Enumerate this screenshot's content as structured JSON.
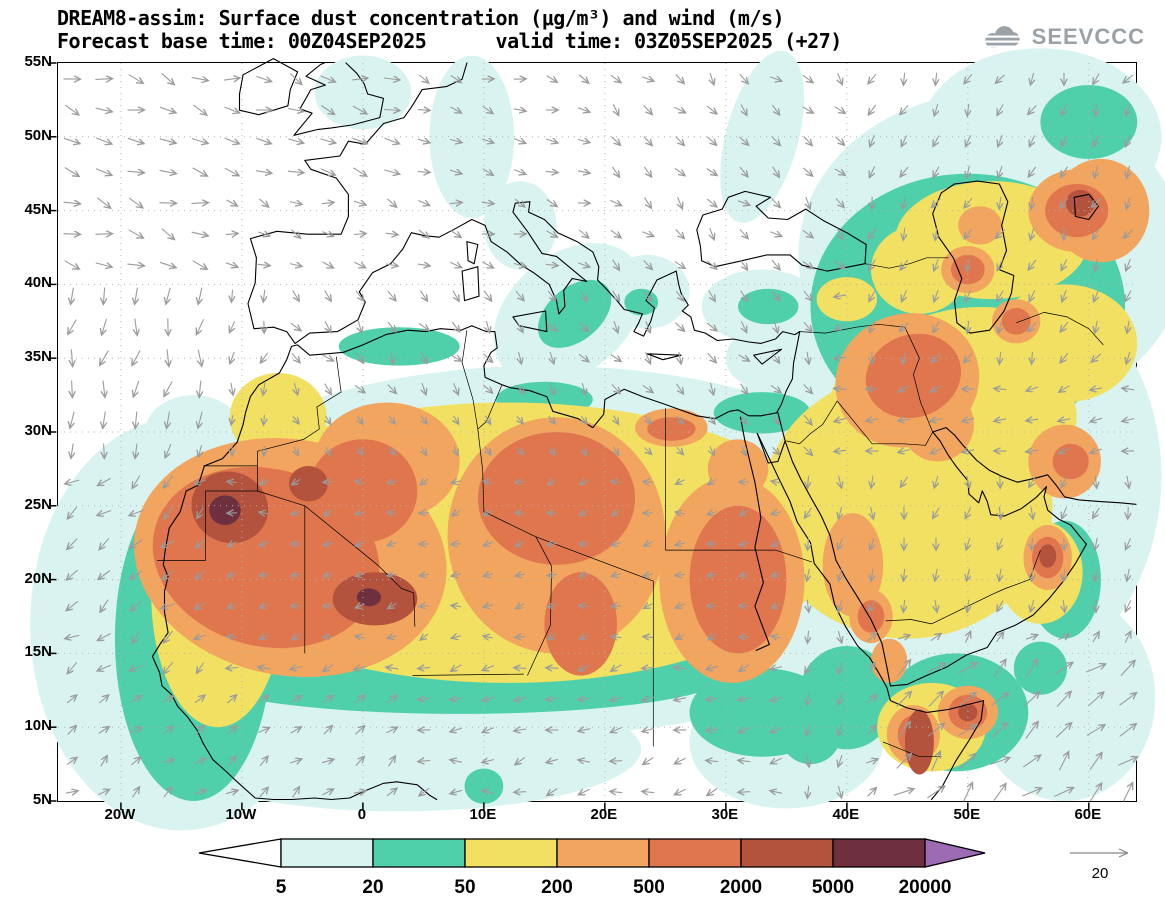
{
  "header": {
    "title_line1": "DREAM8-assim: Surface dust concentration (μg/m³) and wind (m/s)",
    "title_line2": "Forecast base time: 00Z04SEP2025      valid time: 03Z05SEP2025 (+27)",
    "logo_text": "SEEVCCC"
  },
  "chart_data": {
    "type": "heatmap",
    "title": "DREAM8-assim: Surface dust concentration (μg/m³) and wind (m/s)",
    "model": "DREAM8-assim",
    "variable": "Surface dust concentration",
    "units": "μg/m³",
    "wind_variable": "wind",
    "wind_units": "m/s",
    "forecast_base_time": "00Z04SEP2025",
    "valid_time": "03Z05SEP2025",
    "lead_hours": "+27",
    "levels": [
      5,
      20,
      50,
      200,
      500,
      2000,
      5000,
      20000
    ],
    "colorbar_labels": [
      "5",
      "20",
      "50",
      "200",
      "500",
      "2000",
      "5000",
      "20000"
    ],
    "palette": [
      "#ffffff",
      "#d9f4f0",
      "#4fd0ab",
      "#f1e062",
      "#f2a55e",
      "#e0764e",
      "#b3523d",
      "#6e2f3e",
      "#9c6bb3"
    ],
    "reference_wind": "20",
    "wind": {
      "color": "#9b9b9b",
      "spacing_px": 32
    },
    "axis": {
      "lat_ticks": [
        "55N",
        "50N",
        "45N",
        "40N",
        "35N",
        "30N",
        "25N",
        "20N",
        "15N",
        "10N",
        "5N"
      ],
      "lat_values": [
        55,
        50,
        45,
        40,
        35,
        30,
        25,
        20,
        15,
        10,
        5
      ],
      "lon_ticks": [
        "20W",
        "10W",
        "0",
        "10E",
        "20E",
        "30E",
        "40E",
        "50E",
        "60E"
      ],
      "lon_values": [
        -20,
        -10,
        0,
        10,
        20,
        30,
        40,
        50,
        60
      ],
      "lon_min": -25.2,
      "lon_max": 63.9,
      "lat_min": 5,
      "lat_max": 55
    },
    "dust_regions": [
      [
        1,
        -15,
        17,
        12.5,
        14,
        0
      ],
      [
        1,
        15,
        22,
        33,
        12.5,
        0
      ],
      [
        1,
        48,
        27,
        18,
        16,
        0
      ],
      [
        1,
        52,
        42,
        16,
        11,
        0
      ],
      [
        1,
        56,
        50,
        10,
        6,
        0
      ],
      [
        1,
        3,
        8.5,
        20,
        4.2,
        0
      ],
      [
        1,
        35,
        9,
        8,
        4.5,
        0
      ],
      [
        1,
        58,
        12,
        7.5,
        7,
        0
      ],
      [
        1,
        17,
        38,
        7,
        4,
        -40
      ],
      [
        1,
        13,
        44,
        3,
        3,
        0
      ],
      [
        1,
        9,
        50,
        3.5,
        5.5,
        0
      ],
      [
        1,
        0,
        53,
        4,
        2.5,
        0
      ],
      [
        1,
        23.5,
        39.5,
        3.5,
        2.5,
        0
      ],
      [
        1,
        33,
        35,
        3,
        2,
        0
      ],
      [
        1,
        33,
        38.5,
        5,
        2.5,
        0
      ],
      [
        1,
        33,
        50,
        3,
        6,
        15
      ],
      [
        1,
        39,
        43,
        2.5,
        1.8,
        0
      ],
      [
        1,
        -14,
        30,
        4,
        2.5,
        0
      ],
      [
        2,
        -14,
        16,
        6.5,
        11,
        0
      ],
      [
        2,
        8,
        13.5,
        22,
        2.6,
        0
      ],
      [
        2,
        3,
        35.8,
        5,
        1.3,
        0
      ],
      [
        2,
        15,
        32.2,
        4,
        1.2,
        0
      ],
      [
        2,
        33,
        31.3,
        4,
        1.4,
        0
      ],
      [
        2,
        50,
        38.5,
        13,
        9,
        0
      ],
      [
        2,
        60,
        51,
        4,
        2.5,
        0
      ],
      [
        2,
        49,
        11,
        6,
        4,
        0
      ],
      [
        2,
        40,
        12,
        4,
        3.5,
        0
      ],
      [
        2,
        33,
        11,
        6,
        3,
        0
      ],
      [
        2,
        37,
        9.5,
        2.5,
        2,
        0
      ],
      [
        2,
        10,
        6,
        1.6,
        1.2,
        0
      ],
      [
        2,
        56,
        14,
        2.2,
        1.8,
        0
      ],
      [
        2,
        58,
        20,
        3,
        4,
        0
      ],
      [
        2,
        17.5,
        38,
        3.5,
        1.8,
        -40
      ],
      [
        2,
        33.5,
        38.5,
        2.5,
        1.2,
        0
      ],
      [
        2,
        23,
        38.8,
        1.4,
        0.9,
        0
      ],
      [
        3,
        12,
        22.5,
        27,
        9.5,
        0
      ],
      [
        3,
        -12,
        19,
        5.5,
        9,
        0
      ],
      [
        3,
        45,
        25,
        12,
        9,
        0
      ],
      [
        3,
        48,
        33,
        10,
        5,
        -20
      ],
      [
        3,
        52,
        43,
        8,
        4,
        0
      ],
      [
        3,
        58,
        36,
        6,
        4,
        0
      ],
      [
        3,
        46,
        41,
        4,
        3,
        0
      ],
      [
        3,
        54,
        31,
        5,
        4,
        0
      ],
      [
        3,
        47,
        10,
        4.5,
        3,
        0
      ],
      [
        3,
        56,
        20.5,
        3.5,
        3.5,
        0
      ],
      [
        3,
        -7,
        31,
        4,
        3,
        0
      ],
      [
        3,
        40,
        39,
        2.5,
        1.5,
        0
      ],
      [
        4,
        -6,
        21.5,
        13,
        8,
        10
      ],
      [
        4,
        2,
        28,
        6,
        4,
        0
      ],
      [
        4,
        16,
        23,
        9,
        8,
        0
      ],
      [
        4,
        30.5,
        20,
        6,
        7,
        0
      ],
      [
        4,
        25.5,
        30.3,
        3,
        1.3,
        0
      ],
      [
        4,
        31,
        27.5,
        2.5,
        2,
        0
      ],
      [
        4,
        45,
        33.5,
        6,
        4.5,
        -20
      ],
      [
        4,
        47.5,
        30.5,
        3,
        2.5,
        0
      ],
      [
        4,
        50,
        41,
        2.2,
        1.6,
        0
      ],
      [
        4,
        59,
        45,
        4,
        2.8,
        0
      ],
      [
        4,
        61,
        45,
        4,
        3.5,
        0
      ],
      [
        4,
        54,
        37.5,
        2,
        1.5,
        0
      ],
      [
        4,
        51,
        44,
        1.8,
        1.3,
        0
      ],
      [
        4,
        58,
        28,
        3,
        2.5,
        0
      ],
      [
        4,
        50,
        11,
        2.5,
        1.8,
        0
      ],
      [
        4,
        45.5,
        9.5,
        2.2,
        2,
        0
      ],
      [
        4,
        56.6,
        21.5,
        2,
        2.2,
        0
      ],
      [
        4,
        42,
        17.5,
        1.8,
        1.8,
        0
      ],
      [
        4,
        43.5,
        14.5,
        1.5,
        1.5,
        0
      ],
      [
        4,
        40.5,
        21,
        2.5,
        3.5,
        0
      ],
      [
        5,
        -8,
        21.5,
        9.5,
        6,
        15
      ],
      [
        5,
        0,
        26,
        4.5,
        3.5,
        0
      ],
      [
        5,
        16,
        25.5,
        6.5,
        4.5,
        0
      ],
      [
        5,
        18,
        17,
        3,
        3.5,
        0
      ],
      [
        5,
        31,
        20,
        4,
        5,
        0
      ],
      [
        5,
        25.5,
        30.2,
        2,
        0.8,
        0
      ],
      [
        5,
        45.5,
        33.8,
        4,
        2.8,
        -20
      ],
      [
        5,
        59,
        45,
        2.6,
        1.8,
        0
      ],
      [
        5,
        50,
        41,
        1.4,
        1,
        0
      ],
      [
        5,
        54,
        37.5,
        1.2,
        0.9,
        0
      ],
      [
        5,
        50,
        11,
        1.6,
        1.2,
        0
      ],
      [
        5,
        45.5,
        9.5,
        1.3,
        1.3,
        0
      ],
      [
        5,
        56.6,
        21.5,
        1.3,
        1.4,
        0
      ],
      [
        5,
        42,
        17.5,
        1.1,
        1.1,
        0
      ],
      [
        5,
        58.5,
        28,
        1.5,
        1.2,
        0
      ],
      [
        6,
        -11,
        24.9,
        3.2,
        2.4,
        20
      ],
      [
        6,
        1,
        18.7,
        3.5,
        1.8,
        0
      ],
      [
        6,
        -4.5,
        26.5,
        1.6,
        1.2,
        0
      ],
      [
        6,
        59.3,
        45.5,
        1.2,
        0.9,
        0
      ],
      [
        6,
        50,
        11,
        0.8,
        0.6,
        0
      ],
      [
        6,
        46,
        9,
        1.2,
        2.2,
        0
      ],
      [
        6,
        56.6,
        21.6,
        0.7,
        0.8,
        0
      ],
      [
        7,
        -11.4,
        24.7,
        1.3,
        1,
        0
      ],
      [
        7,
        0.5,
        18.8,
        1,
        0.6,
        0
      ]
    ]
  }
}
